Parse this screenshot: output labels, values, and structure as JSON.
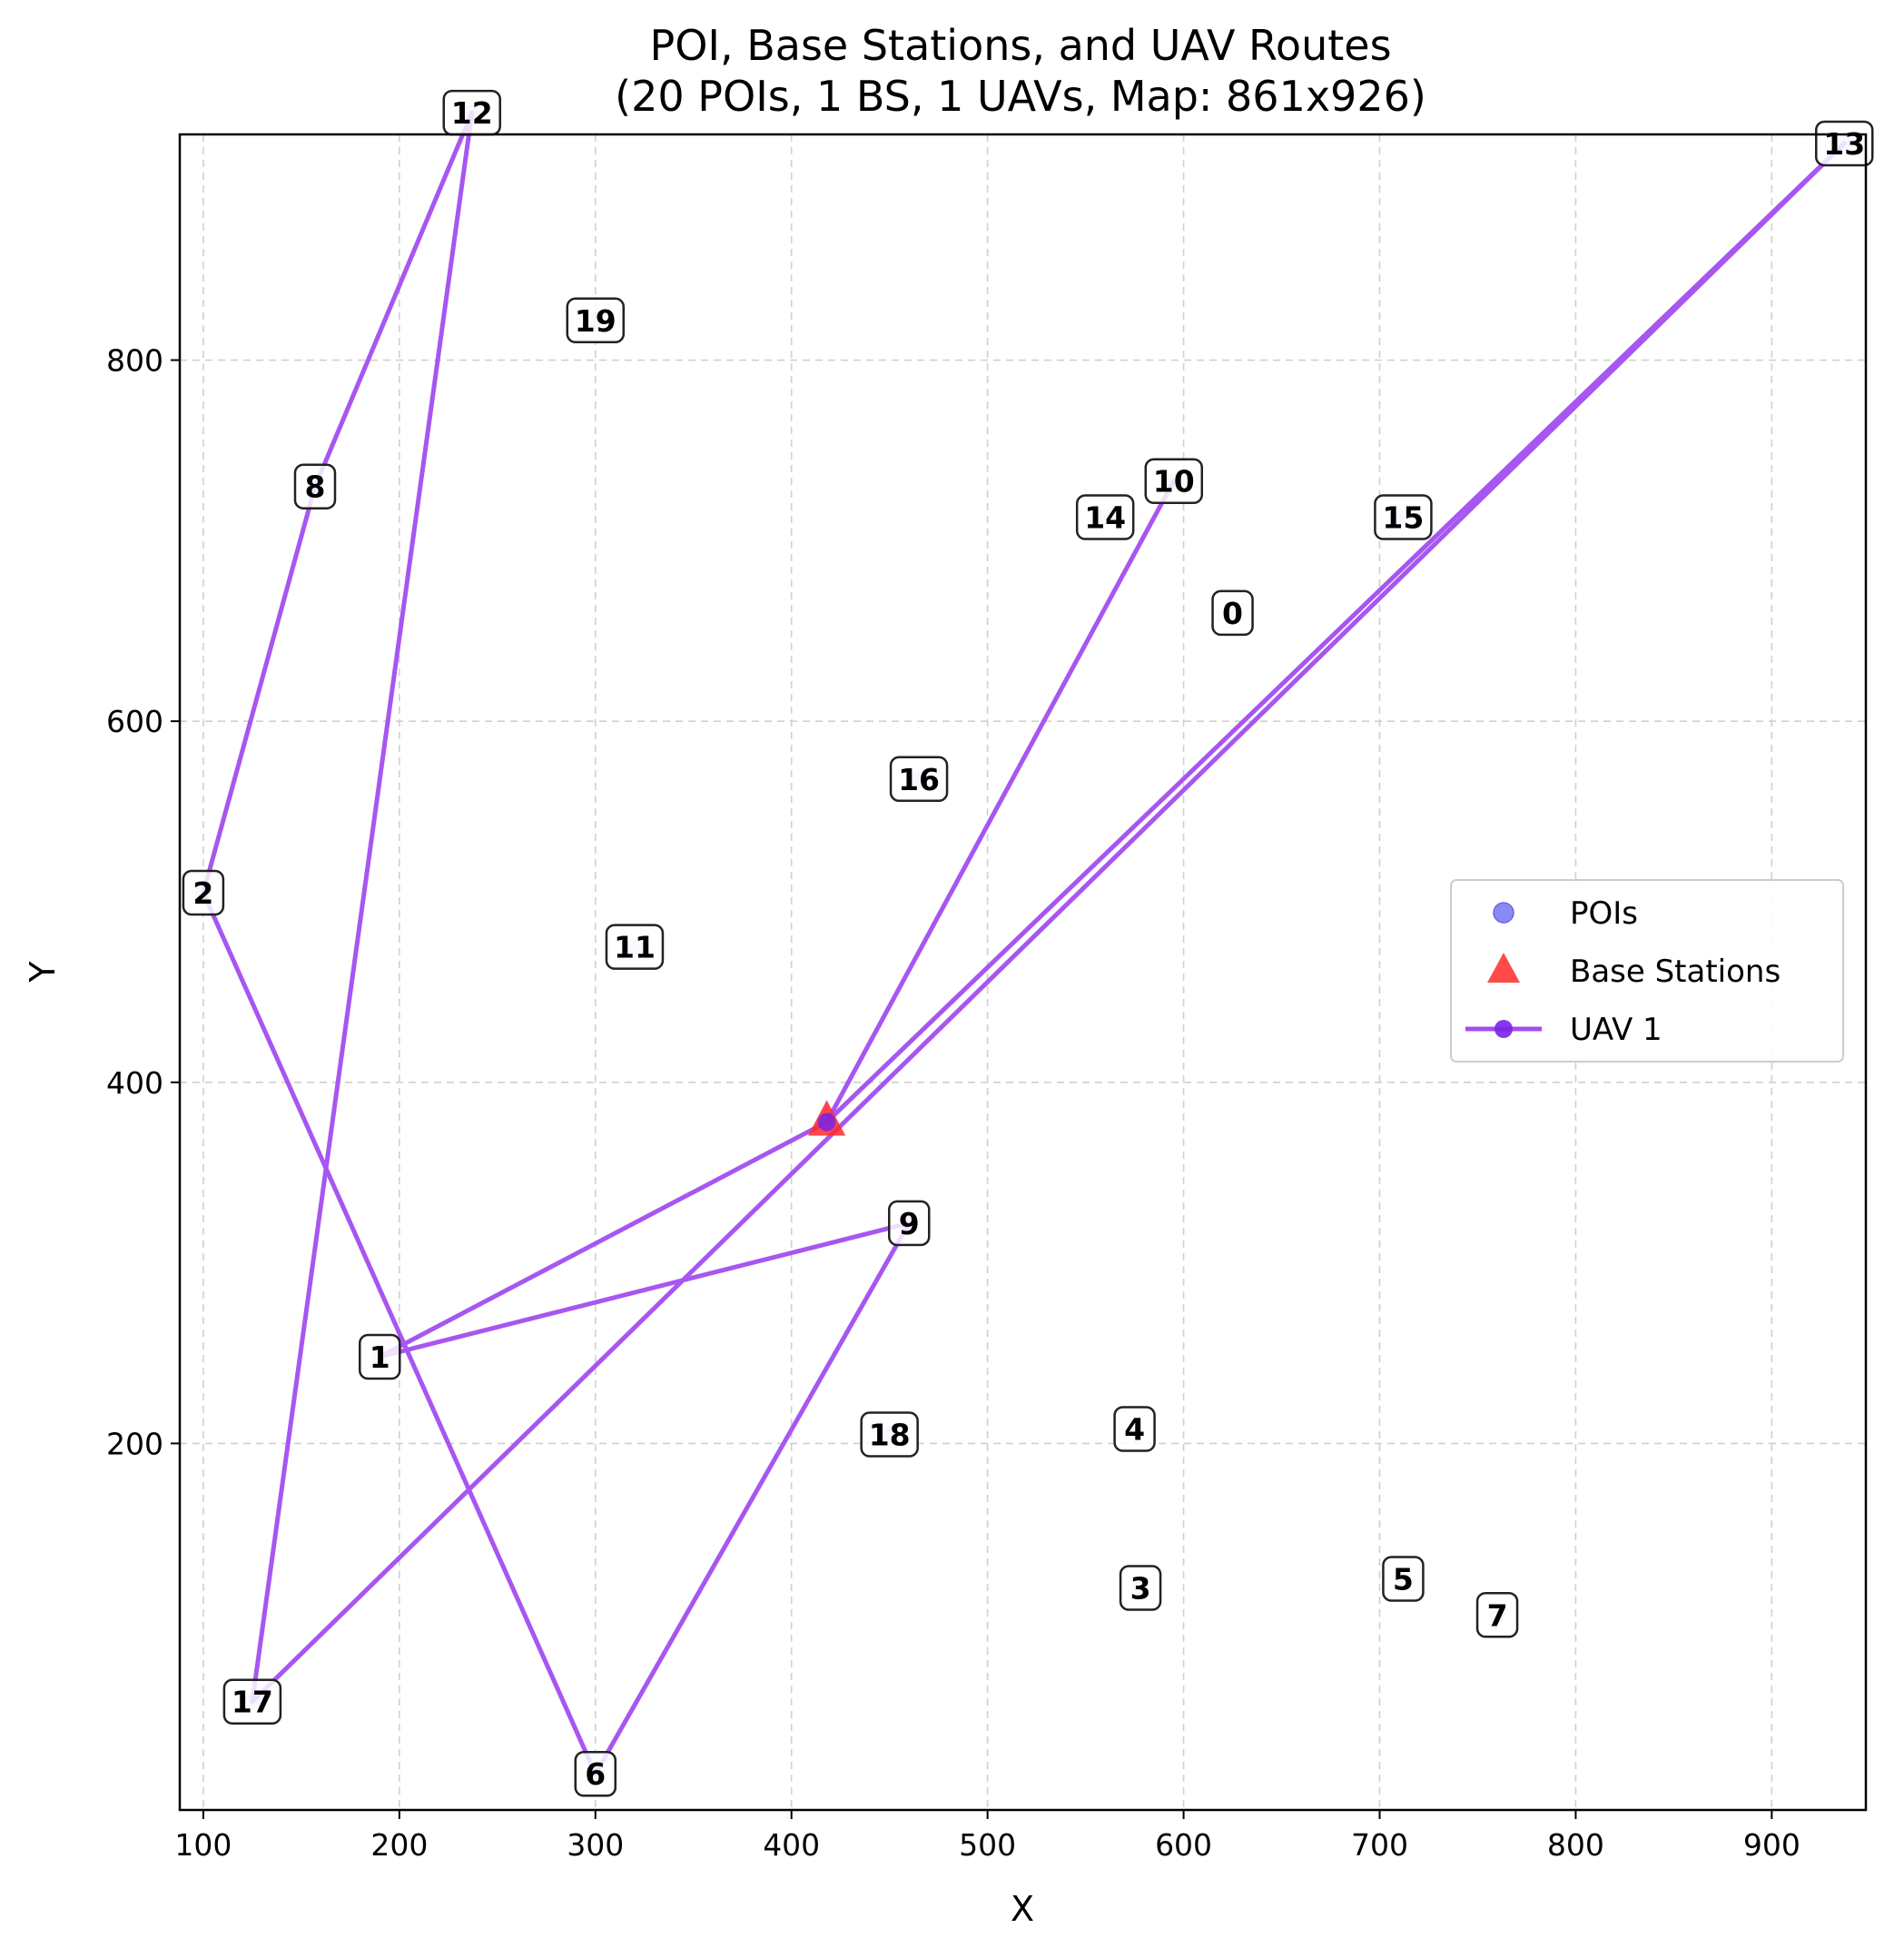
{
  "chart_data": {
    "type": "scatter",
    "title": "POI, Base Stations, and UAV Routes",
    "subtitle": "(20 POIs, 1 BS, 1 UAVs, Map: 861x926)",
    "xlabel": "X",
    "ylabel": "Y",
    "xlim": [
      88,
      948
    ],
    "ylim": [
      -3,
      925
    ],
    "xticks": [
      100,
      200,
      300,
      400,
      500,
      600,
      700,
      800,
      900
    ],
    "yticks": [
      200,
      400,
      600,
      800
    ],
    "grid": true,
    "legend_position": "center-right",
    "colors": {
      "poi": "#5a5af5",
      "base_station": "#ff2a2a",
      "uav": "#a24df0",
      "grid": "#d0d0d0"
    },
    "pois": [
      {
        "id": "0",
        "x": 625,
        "y": 660
      },
      {
        "id": "1",
        "x": 190,
        "y": 248
      },
      {
        "id": "2",
        "x": 100,
        "y": 505
      },
      {
        "id": "3",
        "x": 578,
        "y": 120
      },
      {
        "id": "4",
        "x": 575,
        "y": 208
      },
      {
        "id": "5",
        "x": 712,
        "y": 125
      },
      {
        "id": "6",
        "x": 300,
        "y": 17
      },
      {
        "id": "7",
        "x": 760,
        "y": 105
      },
      {
        "id": "8",
        "x": 157,
        "y": 730
      },
      {
        "id": "9",
        "x": 460,
        "y": 322
      },
      {
        "id": "10",
        "x": 595,
        "y": 733
      },
      {
        "id": "11",
        "x": 320,
        "y": 475
      },
      {
        "id": "12",
        "x": 237,
        "y": 937
      },
      {
        "id": "13",
        "x": 937,
        "y": 920
      },
      {
        "id": "14",
        "x": 560,
        "y": 713
      },
      {
        "id": "15",
        "x": 712,
        "y": 713
      },
      {
        "id": "16",
        "x": 465,
        "y": 568
      },
      {
        "id": "17",
        "x": 125,
        "y": 57
      },
      {
        "id": "18",
        "x": 450,
        "y": 205
      },
      {
        "id": "19",
        "x": 300,
        "y": 822
      }
    ],
    "base_stations": [
      {
        "name": "BS 0",
        "x": 418,
        "y": 378
      }
    ],
    "legend": [
      {
        "label": "POIs",
        "marker": "circle"
      },
      {
        "label": "Base Stations",
        "marker": "triangle"
      },
      {
        "label": "UAV 1",
        "marker": "line-circle"
      }
    ],
    "series": [
      {
        "name": "UAV 1",
        "route": [
          "BS",
          "10",
          "BS",
          "13",
          "17",
          "12",
          "8",
          "2",
          "6",
          "9",
          "1",
          "BS"
        ],
        "x": [
          418,
          595,
          418,
          937,
          125,
          237,
          157,
          100,
          300,
          460,
          190,
          418
        ],
        "y": [
          378,
          733,
          378,
          920,
          57,
          937,
          730,
          505,
          17,
          322,
          248,
          378
        ]
      }
    ]
  }
}
